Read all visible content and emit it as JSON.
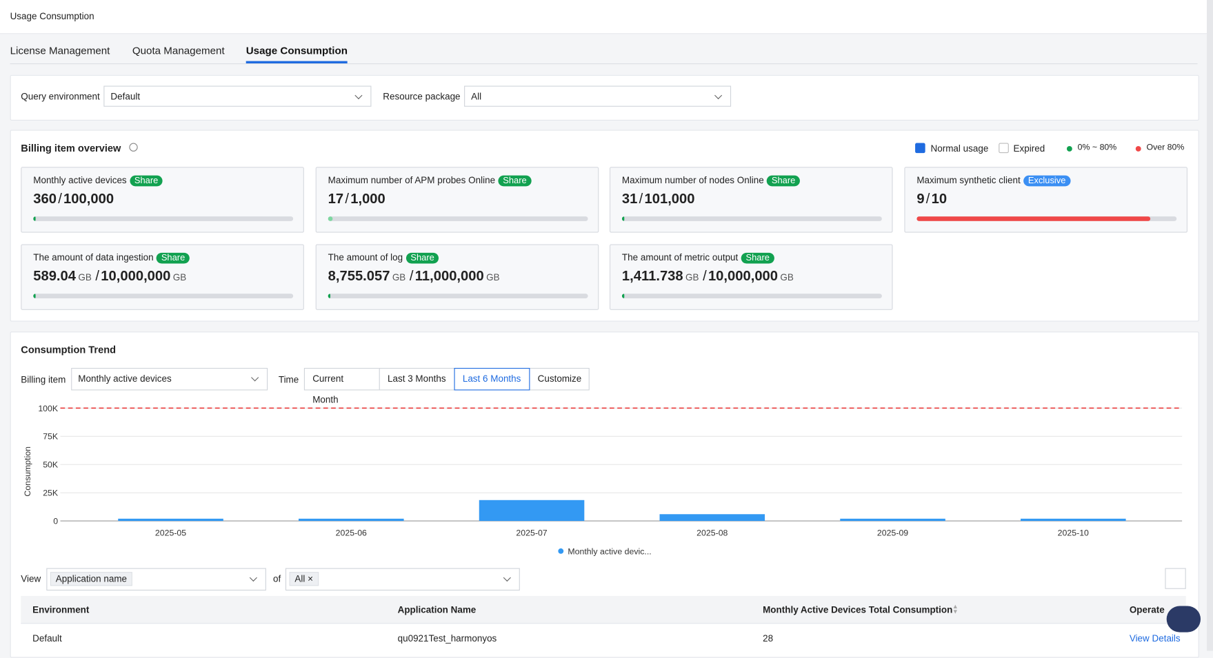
{
  "header": {
    "title": "Usage Consumption"
  },
  "tabs": [
    "License Management",
    "Quota Management",
    "Usage Consumption"
  ],
  "filters": {
    "query_label": "Query environment",
    "query_value": "Default",
    "package_label": "Resource package",
    "package_value": "All"
  },
  "overview": {
    "title": "Billing item overview",
    "separator": "/",
    "legend": [
      "Normal usage",
      "Expired",
      "0% ~ 80%",
      "Over 80%"
    ],
    "cards": [
      {
        "name": "Monthly active devices",
        "badge": "Share",
        "badge_color": "#12a150",
        "used": "360",
        "total": "100,000",
        "color": "#12a150"
      },
      {
        "name": "Maximum number of APM probes Online",
        "badge": "Share",
        "badge_color": "#12a150",
        "used": "17",
        "total": "1,000",
        "color": "#7ed7a0"
      },
      {
        "name": "Maximum number of nodes Online",
        "badge": "Share",
        "badge_color": "#12a150",
        "used": "31",
        "total": "101,000",
        "color": "#12a150"
      },
      {
        "name": "Maximum synthetic client",
        "badge": "Exclusive",
        "badge_color": "#3b8ff3",
        "used": "9",
        "total": "10",
        "color": "#f04848"
      },
      {
        "name": "The amount of data ingestion",
        "badge": "Share",
        "badge_color": "#12a150",
        "used": "589.04",
        "total": "10,000,000",
        "unit": "GB",
        "color": "#12a150"
      },
      {
        "name": "The amount of log",
        "badge": "Share",
        "badge_color": "#12a150",
        "used": "8,755.057",
        "total": "11,000,000",
        "unit": "GB",
        "color": "#12a150"
      },
      {
        "name": "The amount of metric output",
        "badge": "Share",
        "badge_color": "#12a150",
        "used": "1,411.738",
        "total": "10,000,000",
        "unit": "GB",
        "color": "#12a150"
      }
    ]
  },
  "trend": {
    "title": "Consumption Trend",
    "billing_label": "Billing item",
    "billing_value": "Monthly active devices",
    "time_label": "Time",
    "time_options": [
      "Current Month",
      "Last 3 Months",
      "Last 6 Months",
      "Customize"
    ]
  },
  "chart_data": {
    "type": "bar",
    "y_label": "Consumption",
    "categories": [
      "2025-05",
      "2025-06",
      "2025-07",
      "2025-08",
      "2025-09",
      "2025-10"
    ],
    "series": [
      {
        "name": "Monthly active devic...",
        "color": "#3399f3",
        "values": [
          2000,
          2000,
          18500,
          6000,
          2000,
          2000
        ]
      }
    ],
    "ylim": [
      0,
      100000
    ],
    "yticks": [
      0,
      {
        "value": 25000,
        "label": "25K"
      },
      {
        "value": 50000,
        "label": "50K"
      },
      {
        "value": 75000,
        "label": "75K"
      },
      {
        "value": 100000,
        "label": "100K"
      }
    ],
    "threshold": 100000,
    "threshold_color": "#e83a3a",
    "grid": true
  },
  "table_controls": {
    "view_label": "View",
    "view_value": "Application name",
    "of_label": "of",
    "of_value": "All"
  },
  "table": {
    "columns": [
      "Environment",
      "Application Name",
      "Monthly Active Devices Total Consumption",
      "Operate"
    ],
    "rows": [
      [
        "Default",
        "qu0921Test_harmonyos",
        "28",
        "View Details"
      ]
    ]
  }
}
